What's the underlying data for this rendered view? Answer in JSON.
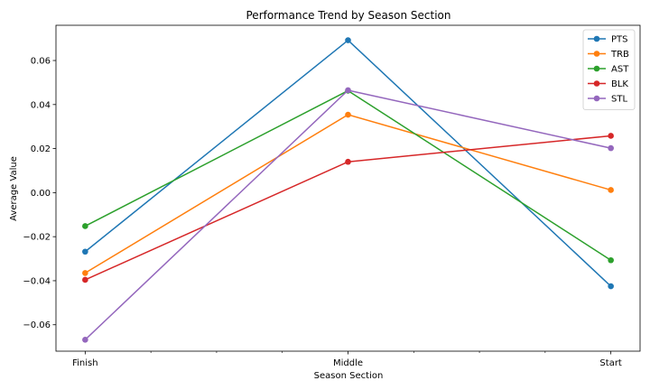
{
  "chart_data": {
    "type": "line",
    "title": "Performance Trend by Season Section",
    "xlabel": "Season Section",
    "ylabel": "Average Value",
    "categories": [
      "Finish",
      "Middle",
      "Start"
    ],
    "ylim": [
      -0.072,
      0.076
    ],
    "yticks": [
      "0.06",
      "0.04",
      "0.02",
      "0.00",
      "−0.02",
      "−0.04",
      "−0.06"
    ],
    "ytick_values": [
      0.06,
      0.04,
      0.02,
      0.0,
      -0.02,
      -0.04,
      -0.06
    ],
    "grid": false,
    "legend_position": "top-right",
    "series": [
      {
        "name": "PTS",
        "color": "#1f77b4",
        "values": [
          -0.0268,
          0.0692,
          -0.0425
        ]
      },
      {
        "name": "TRB",
        "color": "#ff7f0e",
        "values": [
          -0.0365,
          0.0354,
          0.0012
        ]
      },
      {
        "name": "AST",
        "color": "#2ca02c",
        "values": [
          -0.0152,
          0.0463,
          -0.0307
        ]
      },
      {
        "name": "BLK",
        "color": "#d62728",
        "values": [
          -0.0396,
          0.014,
          0.0258
        ]
      },
      {
        "name": "STL",
        "color": "#9467bd",
        "values": [
          -0.0668,
          0.0465,
          0.0202
        ]
      }
    ]
  }
}
